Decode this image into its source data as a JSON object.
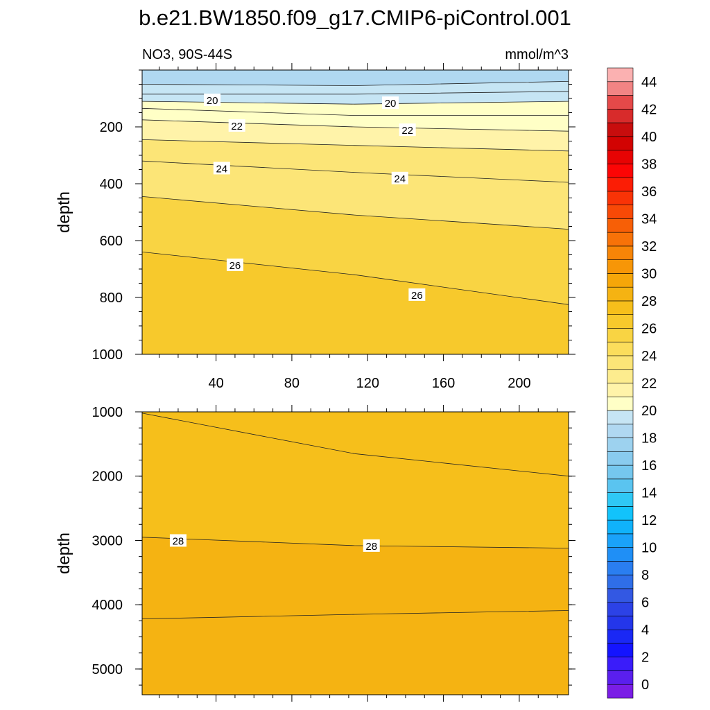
{
  "title": "b.e21.BW1850.f09_g17.CMIP6-piControl.001",
  "top_panel": {
    "left_label": "NO3, 90S-44S",
    "right_label": "mmol/m^3"
  },
  "chart_data": [
    {
      "type": "contour",
      "name": "upper",
      "variable": "NO3",
      "region": "90S-44S",
      "units": "mmol/m^3",
      "ylabel": "depth",
      "xlabel": "",
      "xlim": [
        1,
        226
      ],
      "ylim": [
        1000,
        0
      ],
      "x_ticks": [
        40,
        80,
        120,
        160,
        200
      ],
      "y_ticks": [
        200,
        400,
        600,
        800,
        1000
      ],
      "filled_bands": [
        {
          "low": 18,
          "high": 19,
          "top_depth": 0
        },
        {
          "low": 19,
          "high": 20,
          "top_depth": 70
        },
        {
          "low": 20,
          "high": 21,
          "top_depth": 110
        },
        {
          "low": 21,
          "high": 22,
          "top_depth": 150
        },
        {
          "low": 22,
          "high": 23,
          "top_depth": 185
        },
        {
          "low": 23,
          "high": 24,
          "top_depth": 250
        },
        {
          "low": 24,
          "high": 25,
          "top_depth": 370
        },
        {
          "low": 25,
          "high": 26,
          "top_depth": 490
        },
        {
          "low": 26,
          "high": 27,
          "top_depth": 720
        }
      ],
      "contours": [
        {
          "level": 19,
          "depths": [
            [
              1,
              50
            ],
            [
              113,
              55
            ],
            [
              226,
              40
            ]
          ]
        },
        {
          "level": 19.5,
          "depths": [
            [
              1,
              85
            ],
            [
              113,
              85
            ],
            [
              226,
              75
            ]
          ]
        },
        {
          "level": 20,
          "depths": [
            [
              1,
              110
            ],
            [
              113,
              120
            ],
            [
              226,
              110
            ]
          ]
        },
        {
          "level": 20.5,
          "depths": [
            [
              1,
              135
            ],
            [
              113,
              160
            ],
            [
              226,
              160
            ]
          ]
        },
        {
          "level": 21,
          "depths": [
            [
              1,
              175
            ],
            [
              113,
              200
            ],
            [
              226,
              215
            ]
          ]
        },
        {
          "level": 23,
          "depths": [
            [
              1,
              245
            ],
            [
              113,
              265
            ],
            [
              226,
              285
            ]
          ]
        },
        {
          "level": 23.5,
          "depths": [
            [
              1,
              320
            ],
            [
              113,
              360
            ],
            [
              226,
              395
            ]
          ]
        },
        {
          "level": 25,
          "depths": [
            [
              1,
              445
            ],
            [
              113,
              510
            ],
            [
              226,
              560
            ]
          ]
        },
        {
          "level": 26,
          "depths": [
            [
              1,
              640
            ],
            [
              113,
              720
            ],
            [
              226,
              825
            ]
          ]
        }
      ],
      "contour_labels": [
        {
          "text": "20",
          "x": 38,
          "depth": 105
        },
        {
          "text": "20",
          "x": 132,
          "depth": 115
        },
        {
          "text": "22",
          "x": 51,
          "depth": 195
        },
        {
          "text": "22",
          "x": 141,
          "depth": 210
        },
        {
          "text": "24",
          "x": 43,
          "depth": 345
        },
        {
          "text": "24",
          "x": 137,
          "depth": 380
        },
        {
          "text": "26",
          "x": 50,
          "depth": 685
        },
        {
          "text": "26",
          "x": 146,
          "depth": 790
        }
      ]
    },
    {
      "type": "contour",
      "name": "lower",
      "variable": "NO3",
      "units": "mmol/m^3",
      "ylabel": "depth",
      "xlabel": "",
      "xlim": [
        1,
        226
      ],
      "ylim": [
        5400,
        1000
      ],
      "y_ticks": [
        1000,
        2000,
        3000,
        4000,
        5000
      ],
      "filled_bands": [
        {
          "low": 27,
          "high": 27.5,
          "top_depth": 1000
        },
        {
          "low": 27.5,
          "high": 28,
          "top_depth": 1500
        },
        {
          "low": 28,
          "high": 28.5,
          "top_depth": 3000
        },
        {
          "low": 28.5,
          "high": 29,
          "top_depth": 4200
        }
      ],
      "contours": [
        {
          "level": 27.5,
          "depths": [
            [
              1,
              1020
            ],
            [
              113,
              1650
            ],
            [
              226,
              2000
            ]
          ]
        },
        {
          "level": 28,
          "depths": [
            [
              1,
              2950
            ],
            [
              113,
              3080
            ],
            [
              226,
              3120
            ]
          ]
        },
        {
          "level": 28.5,
          "depths": [
            [
              1,
              4220
            ],
            [
              113,
              4150
            ],
            [
              226,
              4090
            ]
          ]
        }
      ],
      "contour_labels": [
        {
          "text": "28",
          "x": 20,
          "depth": 3000
        },
        {
          "text": "28",
          "x": 122,
          "depth": 3080
        }
      ]
    }
  ],
  "colorbar": {
    "labels": [
      "0",
      "2",
      "4",
      "6",
      "8",
      "10",
      "12",
      "14",
      "16",
      "18",
      "20",
      "22",
      "24",
      "26",
      "28",
      "30",
      "32",
      "34",
      "36",
      "38",
      "40",
      "42",
      "44"
    ],
    "colors": [
      "#7a1de6",
      "#5a1fee",
      "#3a1cfa",
      "#1414ff",
      "#1a28f5",
      "#2436ea",
      "#2c42e6",
      "#3358e3",
      "#2f6ee8",
      "#2a7ef0",
      "#1f8ff6",
      "#1aa2fa",
      "#10b2fb",
      "#12c3fb",
      "#2fc8f5",
      "#5ac4f0",
      "#75c7ee",
      "#89cbee",
      "#9dd2ef",
      "#b0d8f1",
      "#c6e5f4",
      "#ffffc6",
      "#fff3a9",
      "#fdec8e",
      "#fce577",
      "#fbdd5c",
      "#f9d443",
      "#f7c92c",
      "#f6bf1b",
      "#f5b312",
      "#f6a609",
      "#f79607",
      "#f78507",
      "#f77208",
      "#f75f06",
      "#f84906",
      "#f93306",
      "#fb1d05",
      "#fc0505",
      "#e70303",
      "#d20302",
      "#c80d0d",
      "#d82b2b",
      "#e54949",
      "#f28484",
      "#fbb1b1"
    ]
  }
}
